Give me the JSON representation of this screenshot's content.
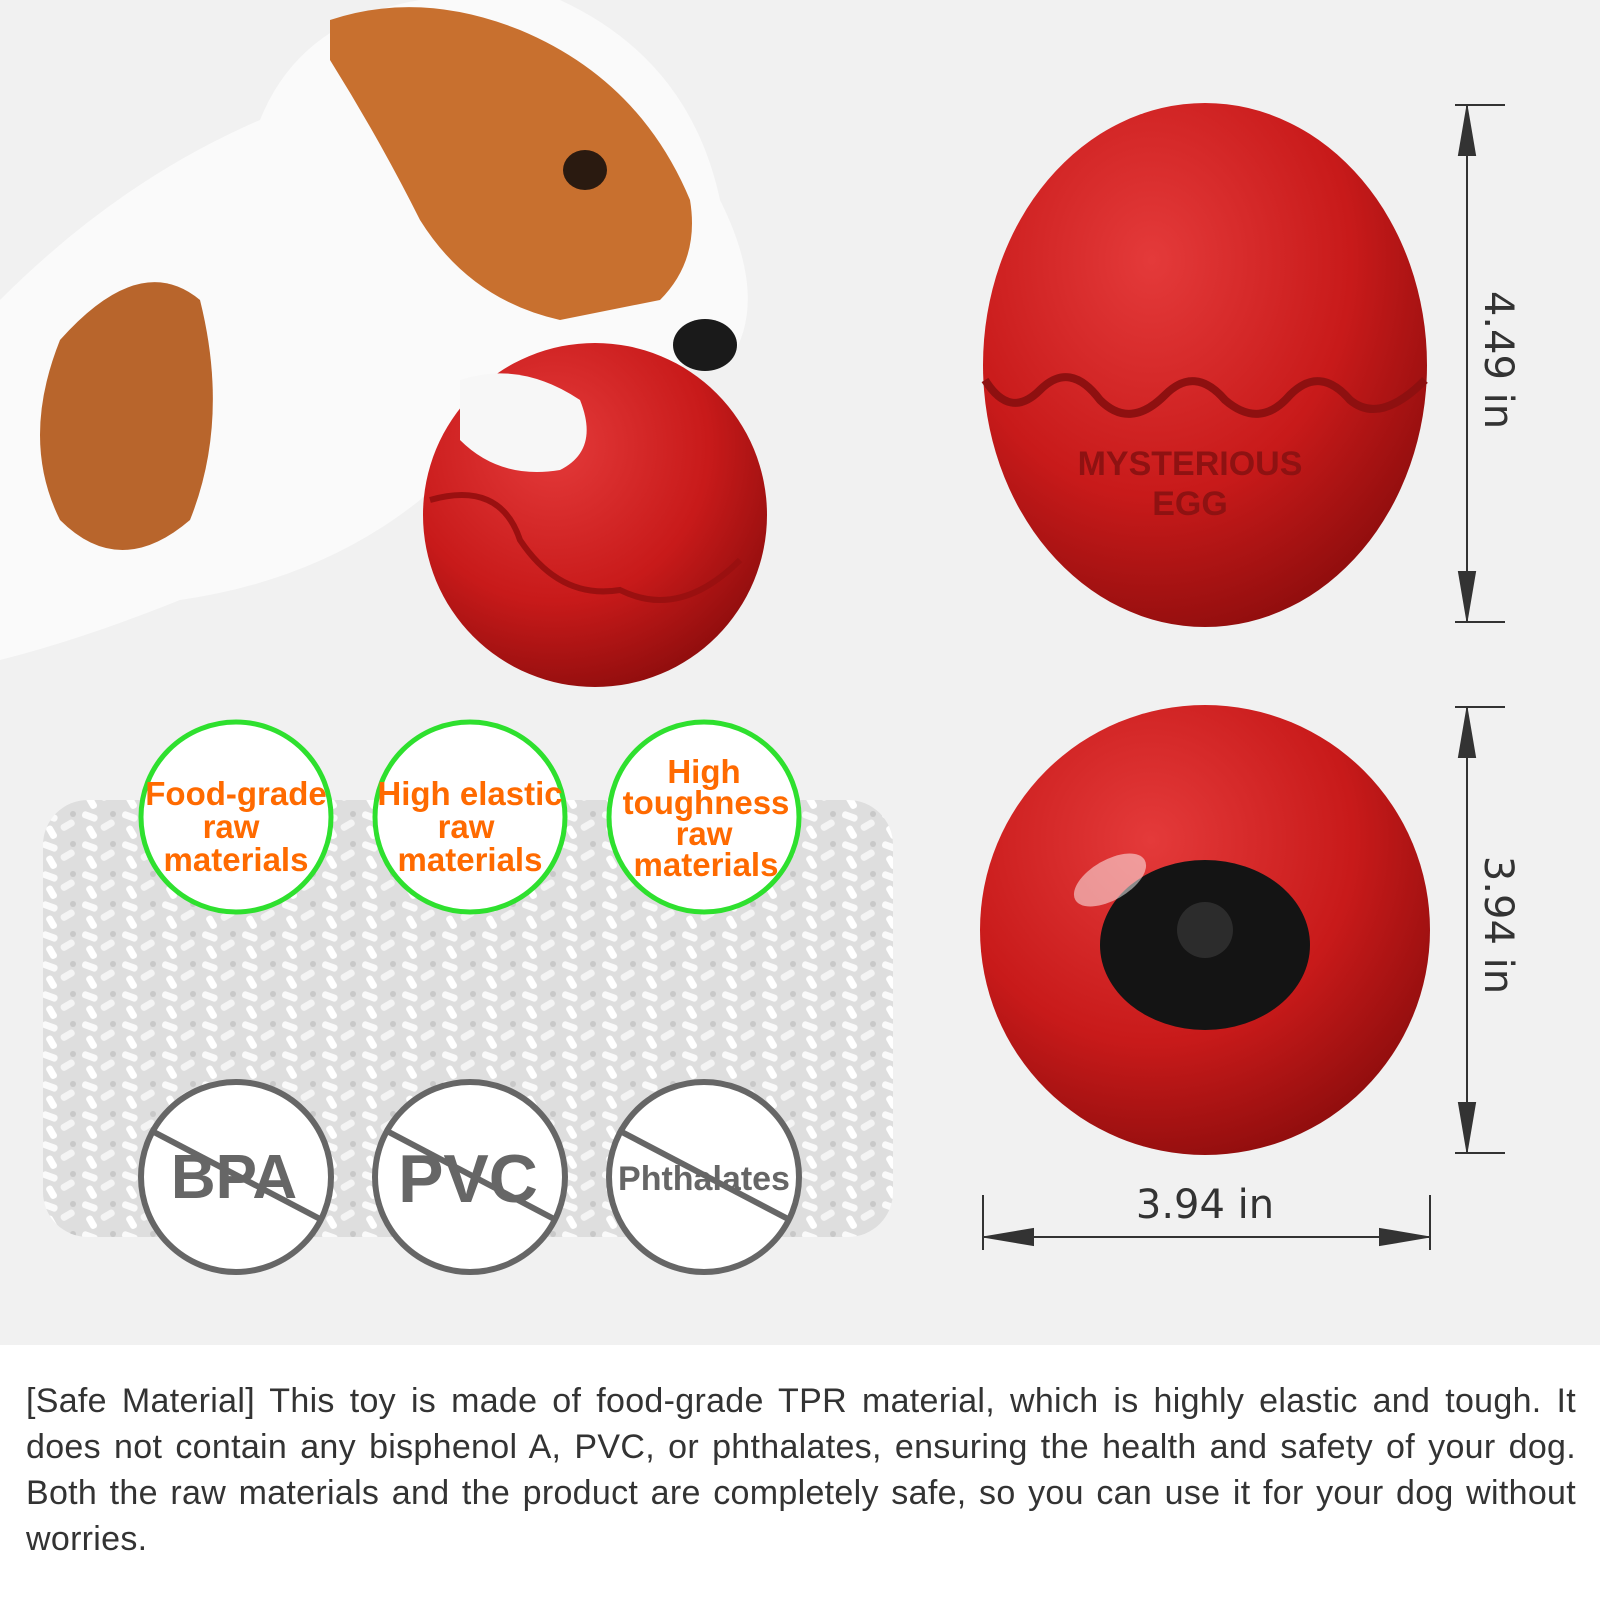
{
  "product": {
    "egg_label_line1": "MYSTERIOUS",
    "egg_label_line2": "EGG"
  },
  "dimensions": {
    "height": "4.49 in",
    "ball_height": "3.94 in",
    "width": "3.94 in"
  },
  "features": [
    {
      "lines": [
        "Food-grade",
        "raw",
        "materials"
      ]
    },
    {
      "lines": [
        "High elastic",
        "raw",
        "materials"
      ]
    },
    {
      "lines": [
        "High",
        "toughness",
        "raw",
        "materials"
      ]
    }
  ],
  "free_of": [
    "BPA",
    "PVC",
    "Phthalates"
  ],
  "description": "[Safe Material] This toy is made of food-grade TPR material, which is highly elastic and tough. It does not contain any bisphenol A, PVC, or phthalates, ensuring the health and safety of your dog. Both the raw materials and the product are completely safe, so you can use it for your dog without worries.",
  "colors": {
    "egg_red": "#c81a1a",
    "badge_green": "#2ee02e",
    "badge_text_orange": "#ff6a00",
    "prohibited_gray": "#666666"
  }
}
